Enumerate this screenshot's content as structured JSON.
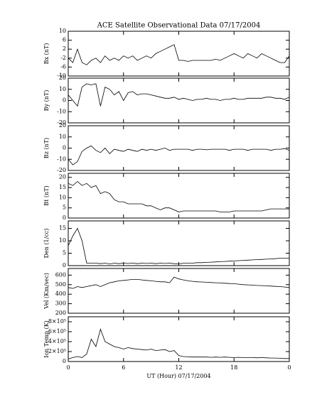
{
  "chart_data": [
    {
      "type": "line",
      "title": "ACE Satellite Observational Data   07/17/2004",
      "ylabel": "Bx (nT)",
      "color": "#000000",
      "x": [
        0,
        0.5,
        1,
        1.5,
        2,
        2.5,
        3,
        3.5,
        4,
        4.5,
        5,
        5.5,
        6,
        6.5,
        7,
        7.5,
        8,
        8.5,
        9,
        9.5,
        10,
        10.5,
        11,
        11.5,
        12,
        12.5,
        13,
        13.5,
        14,
        14.5,
        15,
        15.5,
        16,
        16.5,
        17,
        17.5,
        18,
        18.5,
        19,
        19.5,
        20,
        20.5,
        21,
        21.5,
        22,
        22.5,
        23,
        23.5,
        24
      ],
      "values": [
        -2,
        -4,
        2,
        -4,
        -5,
        -3,
        -2,
        -4,
        -1,
        -3,
        -2,
        -3,
        -1,
        -2,
        -1,
        -3,
        -2,
        -1,
        -2,
        0,
        1,
        2,
        3,
        4,
        -3,
        -3,
        -3.5,
        -3,
        -3,
        -3,
        -3,
        -3,
        -2.5,
        -3,
        -2,
        -1,
        0,
        -1,
        -2,
        0,
        -1,
        -2,
        0,
        -1,
        -2,
        -3,
        -4,
        -4,
        -1
      ],
      "xlim": [
        0,
        24
      ],
      "ylim": [
        -10,
        10
      ],
      "yticks": [
        -10,
        -6,
        -2,
        2,
        6,
        10
      ]
    },
    {
      "type": "line",
      "ylabel": "By (nT)",
      "color": "#000000",
      "x": [
        0,
        0.5,
        1,
        1.5,
        2,
        2.5,
        3,
        3.5,
        4,
        4.5,
        5,
        5.5,
        6,
        6.5,
        7,
        7.5,
        8,
        8.5,
        9,
        9.5,
        10,
        10.5,
        11,
        11.5,
        12,
        12.5,
        13,
        13.5,
        14,
        14.5,
        15,
        15.5,
        16,
        16.5,
        17,
        17.5,
        18,
        18.5,
        19,
        19.5,
        20,
        20.5,
        21,
        21.5,
        22,
        22.5,
        23,
        23.5,
        24
      ],
      "values": [
        5,
        0,
        -5,
        12,
        15,
        14,
        15,
        -5,
        12,
        10,
        5,
        8,
        0,
        7,
        8,
        5,
        6,
        6,
        5,
        4,
        3,
        2,
        2,
        3,
        1,
        2,
        1,
        0,
        1,
        1,
        2,
        1,
        1,
        0,
        1,
        1,
        2,
        1,
        1,
        2,
        2,
        2,
        2,
        3,
        3,
        2,
        2,
        1,
        3
      ],
      "xlim": [
        0,
        24
      ],
      "ylim": [
        -20,
        20
      ],
      "yticks": [
        -20,
        -10,
        0,
        10,
        20
      ]
    },
    {
      "type": "line",
      "ylabel": "Bz (nT)",
      "color": "#000000",
      "x": [
        0,
        0.5,
        1,
        1.5,
        2,
        2.5,
        3,
        3.5,
        4,
        4.5,
        5,
        5.5,
        6,
        6.5,
        7,
        7.5,
        8,
        8.5,
        9,
        9.5,
        10,
        10.5,
        11,
        11.5,
        12,
        12.5,
        13,
        13.5,
        14,
        14.5,
        15,
        15.5,
        16,
        16.5,
        17,
        17.5,
        18,
        18.5,
        19,
        19.5,
        20,
        20.5,
        21,
        21.5,
        22,
        22.5,
        23,
        23.5,
        24
      ],
      "values": [
        -10,
        -15,
        -12,
        -3,
        0,
        2,
        -2,
        -4,
        0,
        -5,
        -1,
        -2,
        -3,
        -1,
        -2,
        -3,
        -1,
        -2,
        -1,
        -2,
        -1,
        0,
        -2,
        -1,
        -1,
        -1,
        -1,
        -2,
        -1,
        -1,
        -1.5,
        -1,
        -1,
        -1,
        -1,
        -2,
        -1,
        -1,
        -1,
        -2,
        -1,
        -1,
        -1,
        -1,
        -2,
        -1,
        -1,
        -0.5,
        -2
      ],
      "xlim": [
        0,
        24
      ],
      "ylim": [
        -20,
        20
      ],
      "yticks": [
        -20,
        -10,
        0,
        10,
        20
      ]
    },
    {
      "type": "line",
      "ylabel": "Bt (nT)",
      "color": "#000000",
      "x": [
        0,
        0.5,
        1,
        1.5,
        2,
        2.5,
        3,
        3.5,
        4,
        4.5,
        5,
        5.5,
        6,
        6.5,
        7,
        7.5,
        8,
        8.5,
        9,
        9.5,
        10,
        10.5,
        11,
        11.5,
        12,
        12.5,
        13,
        13.5,
        14,
        14.5,
        15,
        15.5,
        16,
        16.5,
        17,
        17.5,
        18,
        18.5,
        19,
        19.5,
        20,
        20.5,
        21,
        21.5,
        22,
        22.5,
        23,
        23.5,
        24
      ],
      "values": [
        17,
        16,
        18,
        16,
        17,
        15,
        16,
        12,
        13,
        12,
        9,
        8,
        8,
        7,
        7,
        7,
        7,
        6,
        6,
        5,
        4,
        5,
        5,
        4,
        3,
        3.5,
        3.5,
        3.5,
        3.5,
        3.5,
        3.5,
        3.5,
        3.5,
        3,
        3,
        3,
        3.5,
        3.5,
        3.5,
        3.5,
        3.5,
        3.5,
        3.5,
        4,
        4.5,
        4.5,
        4.5,
        4.5,
        4.5
      ],
      "xlim": [
        0,
        24
      ],
      "ylim": [
        0,
        22
      ],
      "yticks": [
        0,
        5,
        10,
        15,
        20
      ]
    },
    {
      "type": "line",
      "ylabel": "Den (1/cc)",
      "color": "#000000",
      "x": [
        0,
        0.5,
        1,
        1.5,
        2,
        2.5,
        3,
        3.5,
        4,
        4.5,
        5,
        5.5,
        6,
        6.5,
        7,
        7.5,
        8,
        8.5,
        9,
        9.5,
        10,
        10.5,
        11,
        11.5,
        12,
        12.5,
        13,
        13.5,
        14,
        14.5,
        15,
        15.5,
        16,
        16.5,
        17,
        17.5,
        18,
        18.5,
        19,
        19.5,
        20,
        20.5,
        21,
        21.5,
        22,
        22.5,
        23,
        23.5,
        24
      ],
      "values": [
        8,
        12,
        15,
        10,
        1,
        1,
        1,
        0.8,
        1,
        0.7,
        1,
        0.8,
        1,
        0.9,
        1,
        0.8,
        1,
        0.9,
        1,
        0.8,
        1,
        0.9,
        1,
        0.8,
        0.7,
        1,
        1,
        1,
        1.2,
        1.2,
        1.3,
        1.4,
        1.5,
        1.6,
        1.7,
        1.8,
        1.9,
        2,
        2.1,
        2.2,
        2.3,
        2.4,
        2.5,
        2.6,
        2.7,
        2.8,
        3,
        3,
        3
      ],
      "xlim": [
        0,
        24
      ],
      "ylim": [
        0,
        18
      ],
      "yticks": [
        0,
        5,
        10,
        15
      ]
    },
    {
      "type": "line",
      "ylabel": "Vel (Km/sec)",
      "color": "#000000",
      "x": [
        0,
        0.5,
        1,
        1.5,
        2,
        2.5,
        3,
        3.5,
        4,
        4.5,
        5,
        5.5,
        6,
        6.5,
        7,
        7.5,
        8,
        8.5,
        9,
        9.5,
        10,
        10.5,
        11,
        11.5,
        12,
        12.5,
        13,
        13.5,
        14,
        14.5,
        15,
        15.5,
        16,
        16.5,
        17,
        17.5,
        18,
        18.5,
        19,
        19.5,
        20,
        20.5,
        21,
        21.5,
        22,
        22.5,
        23,
        23.5,
        24
      ],
      "values": [
        470,
        460,
        480,
        470,
        480,
        490,
        500,
        480,
        500,
        520,
        530,
        540,
        545,
        550,
        555,
        555,
        550,
        545,
        540,
        535,
        530,
        530,
        520,
        580,
        560,
        550,
        540,
        535,
        530,
        528,
        525,
        522,
        520,
        518,
        515,
        512,
        510,
        505,
        500,
        498,
        495,
        492,
        490,
        488,
        485,
        482,
        480,
        475,
        470
      ],
      "xlim": [
        0,
        24
      ],
      "ylim": [
        200,
        670
      ],
      "yticks": [
        200,
        300,
        400,
        500,
        600
      ]
    },
    {
      "type": "line",
      "ylabel": "Ion Temp (K)",
      "xlabel": "UT (Hour)   07/17/2004",
      "color": "#000000",
      "x": [
        0,
        0.5,
        1,
        1.5,
        2,
        2.5,
        3,
        3.5,
        4,
        4.5,
        5,
        5.5,
        6,
        6.5,
        7,
        7.5,
        8,
        8.5,
        9,
        9.5,
        10,
        10.5,
        11,
        11.5,
        12,
        12.5,
        13,
        13.5,
        14,
        14.5,
        15,
        15.5,
        16,
        16.5,
        17,
        17.5,
        18,
        18.5,
        19,
        19.5,
        20,
        20.5,
        21,
        21.5,
        22,
        22.5,
        23,
        23.5,
        24
      ],
      "values": [
        50000,
        80000,
        100000,
        80000,
        150000,
        450000,
        300000,
        650000,
        400000,
        350000,
        300000,
        280000,
        250000,
        280000,
        260000,
        250000,
        240000,
        230000,
        250000,
        220000,
        230000,
        240000,
        200000,
        220000,
        120000,
        100000,
        95000,
        90000,
        90000,
        90000,
        90000,
        85000,
        90000,
        85000,
        90000,
        85000,
        80000,
        85000,
        80000,
        80000,
        80000,
        75000,
        80000,
        75000,
        70000,
        70000,
        65000,
        60000,
        60000
      ],
      "xlim": [
        0,
        24
      ],
      "xticks": [
        0,
        6,
        12,
        18,
        {
          "value": 24,
          "label": "0"
        }
      ],
      "ylim": [
        0,
        900000
      ],
      "yticks": [
        0,
        {
          "value": 200000,
          "label": "2×10⁵"
        },
        {
          "value": 400000,
          "label": "4×10⁵"
        },
        {
          "value": 600000,
          "label": "6×10⁵"
        },
        {
          "value": 800000,
          "label": "8×10⁵"
        }
      ]
    }
  ]
}
